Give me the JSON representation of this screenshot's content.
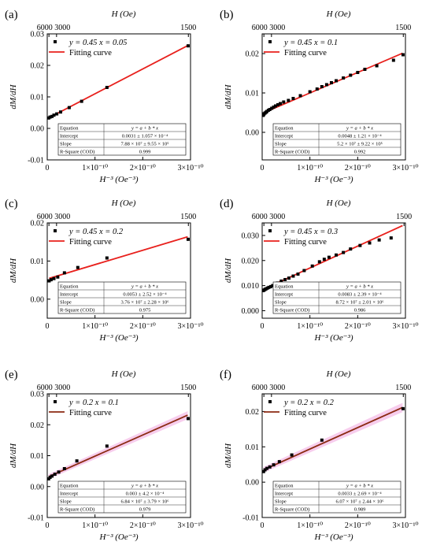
{
  "figure": {
    "top_axis_title": "H (Oe)",
    "top_ticks": [
      "6000",
      "3000",
      "1500"
    ],
    "top_tick_values": [
      2.7778e-08,
      1.1111e-07,
      4.4444e-07
    ],
    "x_axis_label": "H⁻³ (Oe⁻³)",
    "y_axis_label": "dM/dH",
    "x_tick_labels": [
      "0",
      "1×10⁻¹⁰",
      "2×10⁻¹⁰",
      "3×10⁻¹⁰"
    ],
    "legend_fit_label": "Fitting curve",
    "table_header": [
      "Equation",
      "y = a + b * x"
    ],
    "table_row_labels": [
      "Intercept",
      "Slope",
      "R-Square (COD)"
    ]
  },
  "chart_data": [
    {
      "panel": "(a)",
      "type": "scatter",
      "series_label": "y = 0.45 x = 0.05",
      "fit_color": "#e8201c",
      "band": false,
      "xlim": [
        0,
        3e-10
      ],
      "ylim": [
        -0.01,
        0.03
      ],
      "yticks": [
        -0.01,
        0.0,
        0.01,
        0.02,
        0.03
      ],
      "ytick_labels": [
        "-0.01",
        "0.00",
        "0.01",
        "0.02",
        "0.03"
      ],
      "x": [
        3e-12,
        6e-12,
        1e-11,
        1.4e-11,
        2e-11,
        2.8e-11,
        4.6e-11,
        7.2e-11,
        1.25e-10,
        2.95e-10
      ],
      "y": [
        0.0033,
        0.0036,
        0.0038,
        0.0042,
        0.0046,
        0.0052,
        0.0066,
        0.0086,
        0.013,
        0.0262
      ],
      "fit": {
        "intercept": 0.0031,
        "slope": 78800000.0
      },
      "table": {
        "intercept": "0.0031 ± 1.057 × 10⁻⁴",
        "slope": "7.88 × 10⁷ ± 9.55 × 10⁵",
        "r2": "0.999"
      }
    },
    {
      "panel": "(b)",
      "type": "scatter",
      "series_label": "y = 0.45 x = 0.1",
      "fit_color": "#e8201c",
      "band": false,
      "xlim": [
        0,
        3e-10
      ],
      "ylim": [
        -0.007,
        0.025
      ],
      "yticks": [
        0.0,
        0.01,
        0.02
      ],
      "ytick_labels": [
        "0.00",
        "0.01",
        "0.02"
      ],
      "x": [
        2e-12,
        3e-12,
        4e-12,
        6e-12,
        8e-12,
        1e-11,
        1.3e-11,
        1.6e-11,
        2e-11,
        2.4e-11,
        2.8e-11,
        3.3e-11,
        3.8e-11,
        4.5e-11,
        5.5e-11,
        6.5e-11,
        8e-11,
        1e-10,
        1.15e-10,
        1.25e-10,
        1.35e-10,
        1.45e-10,
        1.55e-10,
        1.7e-10,
        1.85e-10,
        2e-10,
        2.15e-10,
        2.4e-10,
        2.75e-10,
        2.95e-10
      ],
      "y": [
        0.0043,
        0.0045,
        0.0047,
        0.0049,
        0.0051,
        0.0053,
        0.0056,
        0.0058,
        0.0061,
        0.0064,
        0.0067,
        0.007,
        0.0073,
        0.0077,
        0.0081,
        0.0086,
        0.0093,
        0.0103,
        0.011,
        0.0116,
        0.0121,
        0.0126,
        0.0131,
        0.0138,
        0.0145,
        0.0152,
        0.016,
        0.0169,
        0.0183,
        0.0197
      ],
      "fit": {
        "intercept": 0.0048,
        "slope": 52000000.0
      },
      "table": {
        "intercept": "0.0048 ± 1.21 × 10⁻⁴",
        "slope": "5.2 × 10⁷ ± 9.22 × 10⁵",
        "r2": "0.992"
      }
    },
    {
      "panel": "(c)",
      "type": "scatter",
      "series_label": "y = 0.45 x = 0.2",
      "fit_color": "#e8201c",
      "band": false,
      "xlim": [
        0,
        3e-10
      ],
      "ylim": [
        -0.005,
        0.02
      ],
      "yticks": [
        0.0,
        0.01,
        0.02
      ],
      "ytick_labels": [
        "0.00",
        "0.01",
        "0.02"
      ],
      "x": [
        4e-12,
        8e-12,
        1.4e-11,
        2.2e-11,
        3.6e-11,
        6.4e-11,
        1.25e-10,
        2.95e-10
      ],
      "y": [
        0.0048,
        0.0051,
        0.0054,
        0.0058,
        0.0069,
        0.0083,
        0.0108,
        0.0157
      ],
      "fit": {
        "intercept": 0.0053,
        "slope": 37600000.0
      },
      "table": {
        "intercept": "0.0053 ± 2.52 × 10⁻⁴",
        "slope": "3.76 × 10⁷ ± 2.28 × 10⁶",
        "r2": "0.975"
      }
    },
    {
      "panel": "(d)",
      "type": "scatter",
      "series_label": "y = 0.45 x = 0.3",
      "fit_color": "#e8201c",
      "band": false,
      "xlim": [
        0,
        3e-10
      ],
      "ylim": [
        -0.003,
        0.035
      ],
      "yticks": [
        0.0,
        0.01,
        0.02,
        0.03
      ],
      "ytick_labels": [
        "0.000",
        "0.010",
        "0.020",
        "0.030"
      ],
      "x": [
        2e-12,
        4e-12,
        6e-12,
        8e-12,
        1.1e-11,
        1.4e-11,
        1.8e-11,
        2.2e-11,
        2.7e-11,
        3.2e-11,
        4e-11,
        4.8e-11,
        5.6e-11,
        6.5e-11,
        7.5e-11,
        8.8e-11,
        1.05e-10,
        1.2e-10,
        1.3e-10,
        1.4e-10,
        1.55e-10,
        1.7e-10,
        1.85e-10,
        2.05e-10,
        2.25e-10,
        2.45e-10,
        2.7e-10
      ],
      "y": [
        0.008,
        0.0082,
        0.0085,
        0.0087,
        0.009,
        0.0093,
        0.0096,
        0.01,
        0.0105,
        0.011,
        0.0118,
        0.0124,
        0.013,
        0.0138,
        0.0146,
        0.016,
        0.0178,
        0.0195,
        0.0205,
        0.0213,
        0.0222,
        0.0232,
        0.0246,
        0.026,
        0.027,
        0.0282,
        0.029
      ],
      "fit": {
        "intercept": 0.0083,
        "slope": 87200000.0
      },
      "table": {
        "intercept": "0.0083 ± 2.39 × 10⁻⁴",
        "slope": "8.72 × 10⁷ ± 2.01 × 10⁶",
        "r2": "0.986"
      }
    },
    {
      "panel": "(e)",
      "type": "scatter",
      "series_label": "y = 0.2 x = 0.1",
      "fit_color": "#8b2a12",
      "band": true,
      "xlim": [
        0,
        3e-10
      ],
      "ylim": [
        -0.01,
        0.03
      ],
      "yticks": [
        -0.01,
        0.0,
        0.01,
        0.02,
        0.03
      ],
      "ytick_labels": [
        "-0.01",
        "0.00",
        "0.01",
        "0.02",
        "0.03"
      ],
      "x": [
        3e-12,
        6e-12,
        1e-11,
        1.6e-11,
        2.4e-11,
        3.6e-11,
        6.2e-11,
        1.25e-10,
        2.95e-10
      ],
      "y": [
        0.0025,
        0.003,
        0.0034,
        0.004,
        0.0047,
        0.0058,
        0.0083,
        0.0131,
        0.022
      ],
      "fit": {
        "intercept": 0.003,
        "slope": 68400000.0
      },
      "table": {
        "intercept": "0.003 ± 4.2 × 10⁻⁴",
        "slope": "6.84 × 10⁷ ± 3.79 × 10⁶",
        "r2": "0.979"
      }
    },
    {
      "panel": "(f)",
      "type": "scatter",
      "series_label": "y = 0.2 x = 0.2",
      "fit_color": "#8b2a12",
      "band": true,
      "xlim": [
        0,
        3e-10
      ],
      "ylim": [
        -0.01,
        0.025
      ],
      "yticks": [
        -0.01,
        0.0,
        0.01,
        0.02
      ],
      "ytick_labels": [
        "-0.01",
        "0.00",
        "0.01",
        "0.02"
      ],
      "x": [
        3e-12,
        6e-12,
        1e-11,
        1.6e-11,
        2.4e-11,
        3.6e-11,
        6.2e-11,
        1.25e-10,
        2.95e-10
      ],
      "y": [
        0.003,
        0.0035,
        0.0039,
        0.0043,
        0.0049,
        0.0058,
        0.0077,
        0.0119,
        0.0208
      ],
      "fit": {
        "intercept": 0.0033,
        "slope": 60700000.0
      },
      "table": {
        "intercept": "0.0033 ± 2.69 × 10⁻⁴",
        "slope": "6.07 × 10⁷ ± 2.44 × 10⁶",
        "r2": "0.989"
      }
    }
  ]
}
